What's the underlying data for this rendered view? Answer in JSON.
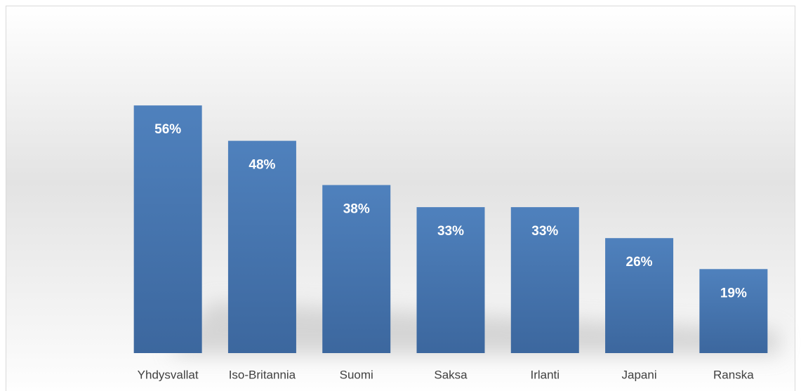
{
  "chart_data": {
    "type": "bar",
    "categories": [
      "Yhdysvallat",
      "Iso-Britannia",
      "Suomi",
      "Saksa",
      "Irlanti",
      "Japani",
      "Ranska"
    ],
    "values": [
      56,
      48,
      38,
      33,
      33,
      26,
      19
    ],
    "value_labels": [
      "56%",
      "48%",
      "38%",
      "33%",
      "33%",
      "26%",
      "19%"
    ],
    "color": "#4f81bd"
  }
}
